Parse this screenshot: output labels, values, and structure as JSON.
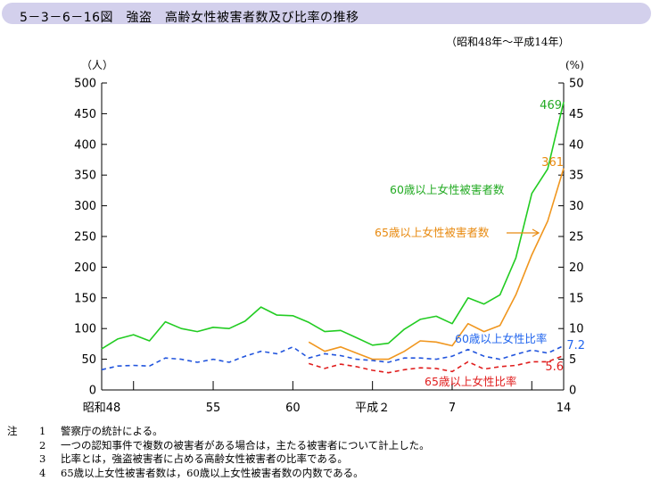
{
  "title": "5－3－6－16図　強盗　高齢女性被害者数及び比率の推移",
  "period": "（昭和48年～平成14年）",
  "notes_label": "注",
  "notes": [
    {
      "num": "1",
      "text": "警察庁の統計による。"
    },
    {
      "num": "2",
      "text": "一つの認知事件で複数の被害者がある場合は，主たる被害者について計上した。"
    },
    {
      "num": "3",
      "text": "比率とは，強盗被害者に占める高齢女性被害者の比率である。"
    },
    {
      "num": "4",
      "text": "65歳以上女性被害者数は，60歳以上女性被害者数の内数である。"
    }
  ],
  "chart_data": {
    "type": "line",
    "left_unit": "（人）",
    "right_unit": "(%)",
    "left_ticks": [
      "0",
      "50",
      "100",
      "150",
      "200",
      "250",
      "300",
      "350",
      "400",
      "450",
      "500"
    ],
    "right_ticks": [
      "0",
      "5",
      "10",
      "15",
      "20",
      "25",
      "30",
      "35",
      "40",
      "45",
      "50"
    ],
    "left_ylim": [
      0,
      500
    ],
    "right_ylim": [
      0,
      50
    ],
    "x_labels": [
      {
        "year": 1973,
        "label": "昭和48"
      },
      {
        "year": 1980,
        "label": "55"
      },
      {
        "year": 1985,
        "label": "60"
      },
      {
        "year": 1990,
        "label": "平成２"
      },
      {
        "year": 1995,
        "label": "7"
      },
      {
        "year": 2002,
        "label": "14"
      }
    ],
    "x_range": [
      1973,
      2002
    ],
    "series": [
      {
        "name": "60歳以上女性被害者数",
        "axis": "left",
        "style": "solid",
        "color": "#22cc22",
        "label_color": "#22aa22",
        "years": [
          1973,
          1974,
          1975,
          1976,
          1977,
          1978,
          1979,
          1980,
          1981,
          1982,
          1983,
          1984,
          1985,
          1986,
          1987,
          1988,
          1989,
          1990,
          1991,
          1992,
          1993,
          1994,
          1995,
          1996,
          1997,
          1998,
          1999,
          2000,
          2001,
          2002
        ],
        "values": [
          67,
          83,
          90,
          80,
          111,
          100,
          95,
          102,
          100,
          112,
          135,
          122,
          121,
          110,
          95,
          97,
          85,
          73,
          76,
          99,
          115,
          120,
          108,
          150,
          140,
          155,
          215,
          320,
          360,
          469
        ],
        "end_label": "469"
      },
      {
        "name": "65歳以上女性被害者数",
        "axis": "left",
        "style": "solid",
        "color": "#f0961e",
        "label_color": "#e88a10",
        "years": [
          1986,
          1987,
          1988,
          1989,
          1990,
          1991,
          1992,
          1993,
          1994,
          1995,
          1996,
          1997,
          1998,
          1999,
          2000,
          2001,
          2002
        ],
        "values": [
          78,
          63,
          70,
          60,
          50,
          50,
          63,
          80,
          78,
          72,
          108,
          95,
          105,
          155,
          220,
          275,
          361
        ],
        "end_label": "361"
      },
      {
        "name": "60歳以上女性比率",
        "axis": "right",
        "style": "dashed",
        "color": "#2255dd",
        "label_color": "#2266ee",
        "years": [
          1973,
          1974,
          1975,
          1976,
          1977,
          1978,
          1979,
          1980,
          1981,
          1982,
          1983,
          1984,
          1985,
          1986,
          1987,
          1988,
          1989,
          1990,
          1991,
          1992,
          1993,
          1994,
          1995,
          1996,
          1997,
          1998,
          1999,
          2000,
          2001,
          2002
        ],
        "values": [
          3.3,
          3.9,
          4.0,
          3.9,
          5.2,
          5.0,
          4.5,
          5.0,
          4.5,
          5.5,
          6.3,
          5.9,
          7.0,
          5.2,
          5.9,
          5.6,
          5.0,
          4.8,
          4.5,
          5.2,
          5.2,
          5.0,
          5.5,
          6.6,
          5.5,
          5.0,
          5.8,
          6.5,
          6.0,
          7.2
        ],
        "end_label": "7.2"
      },
      {
        "name": "65歳以上女性比率",
        "axis": "right",
        "style": "dashed",
        "color": "#e01e1e",
        "label_color": "#e01e1e",
        "years": [
          1986,
          1987,
          1988,
          1989,
          1990,
          1991,
          1992,
          1993,
          1994,
          1995,
          1996,
          1997,
          1998,
          1999,
          2000,
          2001,
          2002
        ],
        "values": [
          4.3,
          3.5,
          4.2,
          3.8,
          3.2,
          2.8,
          3.3,
          3.6,
          3.5,
          3.0,
          4.6,
          3.4,
          3.8,
          4.0,
          4.6,
          4.6,
          5.6
        ],
        "end_label": "5.6"
      }
    ]
  }
}
